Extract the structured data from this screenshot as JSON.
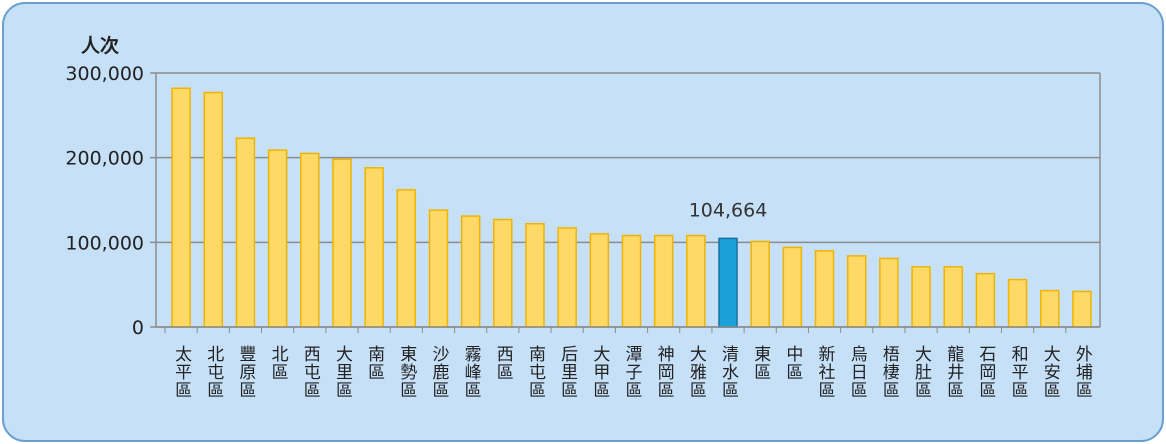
{
  "chart_data": {
    "type": "bar",
    "y_label": "人次",
    "categories": [
      "太平區",
      "北屯區",
      "豐原區",
      "北區",
      "西屯區",
      "大里區",
      "南區",
      "東勢區",
      "沙鹿區",
      "霧峰區",
      "西區",
      "南屯區",
      "后里區",
      "大甲區",
      "潭子區",
      "神岡區",
      "大雅區",
      "清水區",
      "東區",
      "中區",
      "新社區",
      "烏日區",
      "梧棲區",
      "大肚區",
      "龍井區",
      "石岡區",
      "和平區",
      "大安區",
      "外埔區"
    ],
    "values": [
      282000,
      277000,
      223000,
      209000,
      205000,
      198000,
      188000,
      162000,
      138000,
      131000,
      127000,
      122000,
      117000,
      110000,
      108000,
      108000,
      108000,
      104664,
      101000,
      94000,
      90000,
      84000,
      81000,
      71000,
      71000,
      63000,
      56000,
      43000,
      42000
    ],
    "value_labels": [
      null,
      null,
      null,
      null,
      null,
      null,
      null,
      null,
      null,
      null,
      null,
      null,
      null,
      null,
      null,
      null,
      null,
      "104,664",
      null,
      null,
      null,
      null,
      null,
      null,
      null,
      null,
      null,
      null,
      null
    ],
    "colors": [
      "#ffd966",
      "#ffd966",
      "#ffd966",
      "#ffd966",
      "#ffd966",
      "#ffd966",
      "#ffd966",
      "#ffd966",
      "#ffd966",
      "#ffd966",
      "#ffd966",
      "#ffd966",
      "#ffd966",
      "#ffd966",
      "#ffd966",
      "#ffd966",
      "#ffd966",
      "#1ba1d9",
      "#ffd966",
      "#ffd966",
      "#ffd966",
      "#ffd966",
      "#ffd966",
      "#ffd966",
      "#ffd966",
      "#ffd966",
      "#ffd966",
      "#ffd966",
      "#ffd966"
    ],
    "ylim": [
      0,
      300000
    ],
    "yticks": [
      0,
      {
        "value": 100000,
        "label": "100,000"
      },
      {
        "value": 200000,
        "label": "200,000"
      },
      {
        "value": 300000,
        "label": "300,000"
      }
    ],
    "grid": true
  }
}
